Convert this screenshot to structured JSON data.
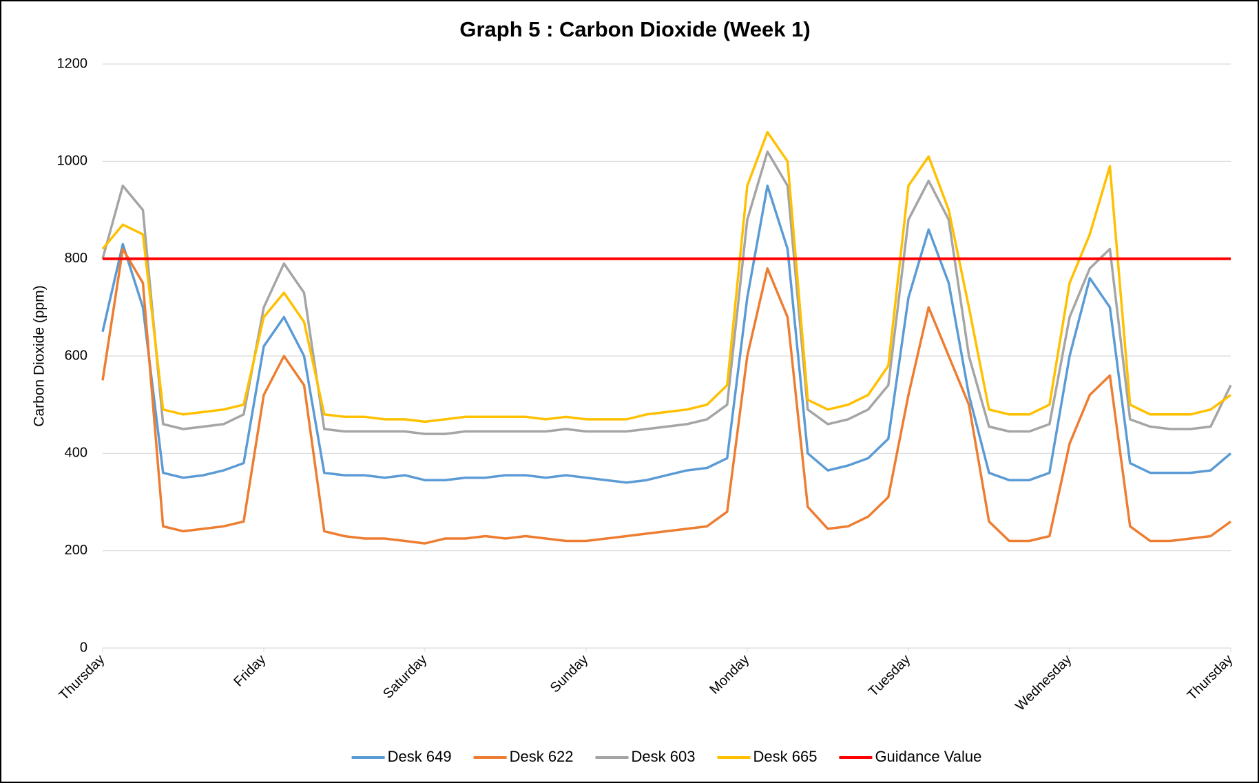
{
  "chart_data": {
    "type": "line",
    "title": "Graph 5 : Carbon Dioxide (Week 1)",
    "ylabel": "Carbon Dioxide (ppm)",
    "xlim": [
      0,
      7
    ],
    "xticks": [
      {
        "value": 0,
        "label": "Thursday"
      },
      {
        "value": 1,
        "label": "Friday"
      },
      {
        "value": 2,
        "label": "Saturday"
      },
      {
        "value": 3,
        "label": "Sunday"
      },
      {
        "value": 4,
        "label": "Monday"
      },
      {
        "value": 5,
        "label": "Tuesday"
      },
      {
        "value": 6,
        "label": "Wednesday"
      },
      {
        "value": 7,
        "label": "Thursday"
      }
    ],
    "ylim": [
      0,
      1200
    ],
    "yticks": [
      0,
      200,
      400,
      600,
      800,
      1000,
      1200
    ],
    "grid": true,
    "legend": "bottom",
    "x": [
      0,
      0.125,
      0.25,
      0.375,
      0.5,
      0.625,
      0.75,
      0.875,
      1,
      1.125,
      1.25,
      1.375,
      1.5,
      1.625,
      1.75,
      1.875,
      2,
      2.125,
      2.25,
      2.375,
      2.5,
      2.625,
      2.75,
      2.875,
      3,
      3.125,
      3.25,
      3.375,
      3.5,
      3.625,
      3.75,
      3.875,
      4,
      4.125,
      4.25,
      4.375,
      4.5,
      4.625,
      4.75,
      4.875,
      5,
      5.125,
      5.25,
      5.375,
      5.5,
      5.625,
      5.75,
      5.875,
      6,
      6.125,
      6.25,
      6.375,
      6.5,
      6.625,
      6.75,
      6.875,
      7
    ],
    "series": [
      {
        "name": "Desk 649",
        "color": "#5b9bd5",
        "values": [
          650,
          830,
          700,
          360,
          350,
          355,
          365,
          380,
          620,
          680,
          600,
          360,
          355,
          355,
          350,
          355,
          345,
          345,
          350,
          350,
          355,
          355,
          350,
          355,
          350,
          345,
          340,
          345,
          355,
          365,
          370,
          390,
          720,
          950,
          820,
          400,
          365,
          375,
          390,
          430,
          720,
          860,
          750,
          520,
          360,
          345,
          345,
          360,
          600,
          760,
          700,
          380,
          360,
          360,
          360,
          365,
          400
        ]
      },
      {
        "name": "Desk 622",
        "color": "#ed7d31",
        "values": [
          550,
          820,
          750,
          250,
          240,
          245,
          250,
          260,
          520,
          600,
          540,
          240,
          230,
          225,
          225,
          220,
          215,
          225,
          225,
          230,
          225,
          230,
          225,
          220,
          220,
          225,
          230,
          235,
          240,
          245,
          250,
          280,
          600,
          780,
          680,
          290,
          245,
          250,
          270,
          310,
          520,
          700,
          600,
          500,
          260,
          220,
          220,
          230,
          420,
          520,
          560,
          250,
          220,
          220,
          225,
          230,
          260
        ]
      },
      {
        "name": "Desk 603",
        "color": "#a5a5a5",
        "values": [
          800,
          950,
          900,
          460,
          450,
          455,
          460,
          480,
          700,
          790,
          730,
          450,
          445,
          445,
          445,
          445,
          440,
          440,
          445,
          445,
          445,
          445,
          445,
          450,
          445,
          445,
          445,
          450,
          455,
          460,
          470,
          500,
          880,
          1020,
          950,
          490,
          460,
          470,
          490,
          540,
          880,
          960,
          880,
          600,
          455,
          445,
          445,
          460,
          680,
          780,
          820,
          470,
          455,
          450,
          450,
          455,
          540
        ]
      },
      {
        "name": "Desk 665",
        "color": "#ffc000",
        "values": [
          820,
          870,
          850,
          490,
          480,
          485,
          490,
          500,
          680,
          730,
          670,
          480,
          475,
          475,
          470,
          470,
          465,
          470,
          475,
          475,
          475,
          475,
          470,
          475,
          470,
          470,
          470,
          480,
          485,
          490,
          500,
          540,
          950,
          1060,
          1000,
          510,
          490,
          500,
          520,
          580,
          950,
          1010,
          900,
          700,
          490,
          480,
          480,
          500,
          750,
          850,
          990,
          500,
          480,
          480,
          480,
          490,
          520
        ]
      },
      {
        "name": "Guidance Value",
        "color": "#ff0000",
        "x": [
          0,
          7
        ],
        "values": [
          800,
          800
        ]
      }
    ]
  }
}
